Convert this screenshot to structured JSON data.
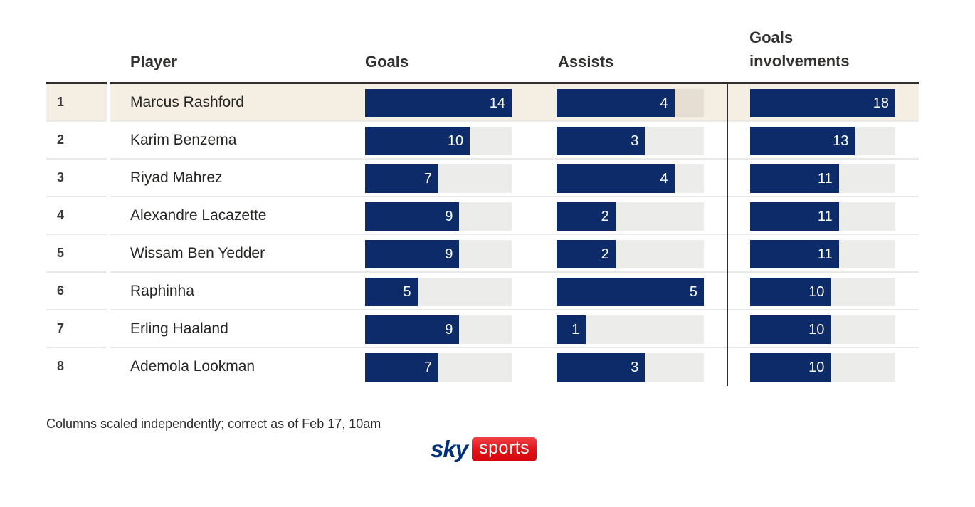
{
  "table": {
    "headers": {
      "player": "Player",
      "goals": "Goals",
      "assists": "Assists",
      "involvements": "Goals involvements"
    },
    "rows": [
      {
        "rank": "1",
        "player": "Marcus Rashford",
        "goals": 14,
        "assists": 4,
        "involvements": 18,
        "highlighted": true
      },
      {
        "rank": "2",
        "player": "Karim Benzema",
        "goals": 10,
        "assists": 3,
        "involvements": 13,
        "highlighted": false
      },
      {
        "rank": "3",
        "player": "Riyad Mahrez",
        "goals": 7,
        "assists": 4,
        "involvements": 11,
        "highlighted": false
      },
      {
        "rank": "4",
        "player": "Alexandre Lacazette",
        "goals": 9,
        "assists": 2,
        "involvements": 11,
        "highlighted": false
      },
      {
        "rank": "5",
        "player": "Wissam Ben Yedder",
        "goals": 9,
        "assists": 2,
        "involvements": 11,
        "highlighted": false
      },
      {
        "rank": "6",
        "player": "Raphinha",
        "goals": 5,
        "assists": 5,
        "involvements": 10,
        "highlighted": false
      },
      {
        "rank": "7",
        "player": "Erling Haaland",
        "goals": 9,
        "assists": 1,
        "involvements": 10,
        "highlighted": false
      },
      {
        "rank": "8",
        "player": "Ademola Lookman",
        "goals": 7,
        "assists": 3,
        "involvements": 10,
        "highlighted": false
      }
    ],
    "column_max": {
      "goals": 14,
      "assists": 5,
      "involvements": 18
    }
  },
  "chart_data": {
    "type": "bar",
    "orientation": "horizontal",
    "title": "",
    "categories": [
      "Marcus Rashford",
      "Karim Benzema",
      "Riyad Mahrez",
      "Alexandre Lacazette",
      "Wissam Ben Yedder",
      "Raphinha",
      "Erling Haaland",
      "Ademola Lookman"
    ],
    "ranks": [
      1,
      2,
      3,
      4,
      5,
      6,
      7,
      8
    ],
    "series": [
      {
        "name": "Goals",
        "values": [
          14,
          10,
          7,
          9,
          9,
          5,
          9,
          7
        ],
        "axis_max": 14
      },
      {
        "name": "Assists",
        "values": [
          4,
          3,
          4,
          2,
          2,
          5,
          1,
          3
        ],
        "axis_max": 5
      },
      {
        "name": "Goals involvements",
        "values": [
          18,
          13,
          11,
          11,
          11,
          10,
          10,
          10
        ],
        "axis_max": 18
      }
    ],
    "highlighted_category": "Marcus Rashford",
    "legend": "none",
    "grid": "off",
    "annotation": "Columns scaled independently; correct as of Feb 17, 10am",
    "bar_color": "#0c2b68",
    "track_color": "#ececeb",
    "highlight_row_color": "#f5efe3",
    "highlight_track_color": "#e6ded2"
  },
  "footer": {
    "note": "Columns scaled independently; correct as of Feb 17, 10am"
  },
  "logo": {
    "sky": "sky",
    "sports": "sports",
    "sky_color": "#02317e",
    "sports_bg": "#e01117"
  }
}
